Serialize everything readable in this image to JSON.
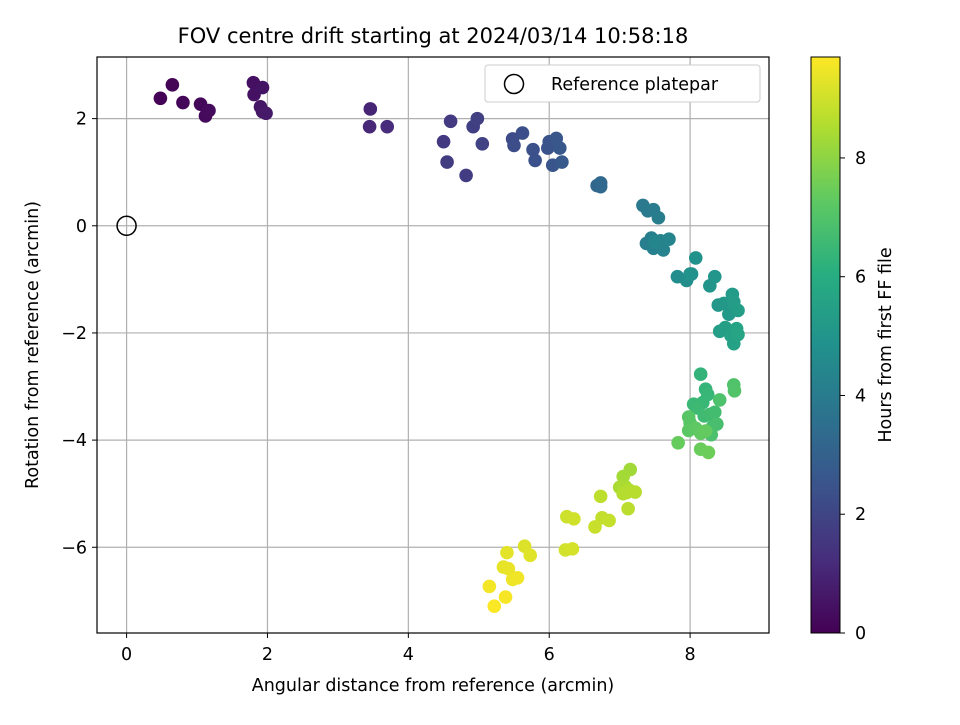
{
  "chart_data": {
    "type": "scatter",
    "title": "FOV centre drift starting at 2024/03/14 10:58:18",
    "xlabel": "Angular distance from reference (arcmin)",
    "ylabel": "Rotation from reference (arcmin)",
    "xlim": [
      -0.42,
      9.12
    ],
    "ylim": [
      -7.6,
      3.15
    ],
    "xticks": [
      0,
      2,
      4,
      6,
      8
    ],
    "yticks": [
      -6,
      -4,
      -2,
      0,
      2
    ],
    "grid": true,
    "legend": {
      "placement": "top-right",
      "entries": [
        "Reference platepar"
      ]
    },
    "reference_point": {
      "x": 0,
      "y": 0
    },
    "colorbar": {
      "label": "Hours from first FF file",
      "range": [
        0,
        9.7
      ],
      "ticks": [
        0,
        2,
        4,
        6,
        8
      ],
      "colormap": "viridis"
    },
    "points": [
      {
        "x": 0.48,
        "y": 2.38,
        "c": 0.05
      },
      {
        "x": 0.65,
        "y": 2.63,
        "c": 0.1
      },
      {
        "x": 0.8,
        "y": 2.3,
        "c": 0.15
      },
      {
        "x": 1.05,
        "y": 2.27,
        "c": 0.2
      },
      {
        "x": 1.12,
        "y": 2.05,
        "c": 0.25
      },
      {
        "x": 1.17,
        "y": 2.15,
        "c": 0.3
      },
      {
        "x": 1.8,
        "y": 2.67,
        "c": 0.4
      },
      {
        "x": 1.81,
        "y": 2.45,
        "c": 0.45
      },
      {
        "x": 1.93,
        "y": 2.58,
        "c": 0.5
      },
      {
        "x": 1.9,
        "y": 2.22,
        "c": 0.55
      },
      {
        "x": 1.93,
        "y": 2.13,
        "c": 0.6
      },
      {
        "x": 1.98,
        "y": 2.1,
        "c": 0.65
      },
      {
        "x": 3.46,
        "y": 2.18,
        "c": 1.0
      },
      {
        "x": 3.45,
        "y": 1.85,
        "c": 1.1
      },
      {
        "x": 3.7,
        "y": 1.85,
        "c": 1.2
      },
      {
        "x": 4.5,
        "y": 1.57,
        "c": 1.6
      },
      {
        "x": 4.6,
        "y": 1.95,
        "c": 1.65
      },
      {
        "x": 4.55,
        "y": 1.19,
        "c": 1.7
      },
      {
        "x": 4.82,
        "y": 0.94,
        "c": 1.75
      },
      {
        "x": 4.92,
        "y": 1.85,
        "c": 1.8
      },
      {
        "x": 4.98,
        "y": 2.0,
        "c": 1.85
      },
      {
        "x": 5.05,
        "y": 1.53,
        "c": 1.9
      },
      {
        "x": 5.48,
        "y": 1.62,
        "c": 2.2
      },
      {
        "x": 5.5,
        "y": 1.5,
        "c": 2.25
      },
      {
        "x": 5.62,
        "y": 1.73,
        "c": 2.3
      },
      {
        "x": 5.77,
        "y": 1.42,
        "c": 2.35
      },
      {
        "x": 5.8,
        "y": 1.22,
        "c": 2.4
      },
      {
        "x": 5.98,
        "y": 1.45,
        "c": 2.45
      },
      {
        "x": 6.0,
        "y": 1.57,
        "c": 2.5
      },
      {
        "x": 6.05,
        "y": 1.13,
        "c": 2.55
      },
      {
        "x": 6.1,
        "y": 1.63,
        "c": 2.6
      },
      {
        "x": 6.15,
        "y": 1.45,
        "c": 2.65
      },
      {
        "x": 6.18,
        "y": 1.19,
        "c": 2.7
      },
      {
        "x": 6.68,
        "y": 0.75,
        "c": 3.2
      },
      {
        "x": 6.73,
        "y": 0.8,
        "c": 3.25
      },
      {
        "x": 6.73,
        "y": 0.73,
        "c": 3.3
      },
      {
        "x": 7.33,
        "y": 0.38,
        "c": 3.9
      },
      {
        "x": 7.4,
        "y": 0.28,
        "c": 3.95
      },
      {
        "x": 7.48,
        "y": 0.3,
        "c": 4.0
      },
      {
        "x": 7.55,
        "y": 0.15,
        "c": 4.05
      },
      {
        "x": 7.38,
        "y": -0.33,
        "c": 4.1
      },
      {
        "x": 7.45,
        "y": -0.23,
        "c": 4.15
      },
      {
        "x": 7.48,
        "y": -0.42,
        "c": 4.2
      },
      {
        "x": 7.58,
        "y": -0.28,
        "c": 4.25
      },
      {
        "x": 7.62,
        "y": -0.45,
        "c": 4.3
      },
      {
        "x": 7.7,
        "y": -0.25,
        "c": 4.35
      },
      {
        "x": 7.5,
        "y": -0.3,
        "c": 4.4
      },
      {
        "x": 7.82,
        "y": -0.95,
        "c": 4.7
      },
      {
        "x": 7.95,
        "y": -1.02,
        "c": 4.75
      },
      {
        "x": 8.02,
        "y": -0.9,
        "c": 4.8
      },
      {
        "x": 8.08,
        "y": -0.6,
        "c": 4.85
      },
      {
        "x": 8.0,
        "y": -0.9,
        "c": 4.9
      },
      {
        "x": 8.28,
        "y": -1.12,
        "c": 5.0
      },
      {
        "x": 8.35,
        "y": -0.95,
        "c": 5.05
      },
      {
        "x": 8.4,
        "y": -1.48,
        "c": 5.1
      },
      {
        "x": 8.48,
        "y": -1.45,
        "c": 5.15
      },
      {
        "x": 8.55,
        "y": -1.65,
        "c": 5.2
      },
      {
        "x": 8.6,
        "y": -1.28,
        "c": 5.25
      },
      {
        "x": 8.62,
        "y": -1.42,
        "c": 5.3
      },
      {
        "x": 8.68,
        "y": -1.58,
        "c": 5.35
      },
      {
        "x": 8.42,
        "y": -1.97,
        "c": 5.4
      },
      {
        "x": 8.5,
        "y": -1.9,
        "c": 5.45
      },
      {
        "x": 8.58,
        "y": -2.05,
        "c": 5.5
      },
      {
        "x": 8.62,
        "y": -2.2,
        "c": 5.55
      },
      {
        "x": 8.66,
        "y": -1.92,
        "c": 5.6
      },
      {
        "x": 8.68,
        "y": -2.03,
        "c": 5.65
      },
      {
        "x": 8.15,
        "y": -2.77,
        "c": 6.3
      },
      {
        "x": 8.22,
        "y": -3.05,
        "c": 6.35
      },
      {
        "x": 8.25,
        "y": -3.15,
        "c": 6.4
      },
      {
        "x": 8.18,
        "y": -3.3,
        "c": 6.45
      },
      {
        "x": 8.05,
        "y": -3.33,
        "c": 6.5
      },
      {
        "x": 8.1,
        "y": -3.4,
        "c": 6.55
      },
      {
        "x": 8.2,
        "y": -3.55,
        "c": 6.6
      },
      {
        "x": 8.28,
        "y": -3.52,
        "c": 6.65
      },
      {
        "x": 8.35,
        "y": -3.48,
        "c": 6.7
      },
      {
        "x": 8.32,
        "y": -3.75,
        "c": 6.75
      },
      {
        "x": 8.38,
        "y": -3.7,
        "c": 6.8
      },
      {
        "x": 8.3,
        "y": -3.9,
        "c": 6.85
      },
      {
        "x": 8.42,
        "y": -3.25,
        "c": 6.9
      },
      {
        "x": 8.62,
        "y": -2.97,
        "c": 6.95
      },
      {
        "x": 8.63,
        "y": -3.08,
        "c": 7.0
      },
      {
        "x": 7.98,
        "y": -3.57,
        "c": 7.1
      },
      {
        "x": 8.0,
        "y": -3.68,
        "c": 7.15
      },
      {
        "x": 7.98,
        "y": -3.82,
        "c": 7.2
      },
      {
        "x": 8.08,
        "y": -3.78,
        "c": 7.25
      },
      {
        "x": 8.15,
        "y": -3.87,
        "c": 7.3
      },
      {
        "x": 8.22,
        "y": -3.83,
        "c": 7.35
      },
      {
        "x": 7.83,
        "y": -4.05,
        "c": 7.4
      },
      {
        "x": 8.15,
        "y": -4.17,
        "c": 7.45
      },
      {
        "x": 8.26,
        "y": -4.23,
        "c": 7.5
      },
      {
        "x": 7.15,
        "y": -4.55,
        "c": 8.3
      },
      {
        "x": 7.05,
        "y": -4.68,
        "c": 8.35
      },
      {
        "x": 7.08,
        "y": -4.87,
        "c": 8.4
      },
      {
        "x": 7.0,
        "y": -4.88,
        "c": 8.45
      },
      {
        "x": 7.1,
        "y": -4.98,
        "c": 8.5
      },
      {
        "x": 7.13,
        "y": -4.93,
        "c": 8.55
      },
      {
        "x": 7.05,
        "y": -5.0,
        "c": 8.6
      },
      {
        "x": 7.22,
        "y": -4.97,
        "c": 8.65
      },
      {
        "x": 7.12,
        "y": -5.28,
        "c": 8.7
      },
      {
        "x": 6.73,
        "y": -5.05,
        "c": 8.75
      },
      {
        "x": 6.75,
        "y": -5.45,
        "c": 8.8
      },
      {
        "x": 6.85,
        "y": -5.5,
        "c": 8.85
      },
      {
        "x": 6.65,
        "y": -5.62,
        "c": 8.9
      },
      {
        "x": 6.25,
        "y": -5.43,
        "c": 8.95
      },
      {
        "x": 6.35,
        "y": -5.47,
        "c": 9.0
      },
      {
        "x": 6.23,
        "y": -6.05,
        "c": 9.05
      },
      {
        "x": 6.33,
        "y": -6.03,
        "c": 9.1
      },
      {
        "x": 5.65,
        "y": -5.98,
        "c": 9.2
      },
      {
        "x": 5.73,
        "y": -6.15,
        "c": 9.25
      },
      {
        "x": 5.4,
        "y": -6.1,
        "c": 9.3
      },
      {
        "x": 5.35,
        "y": -6.37,
        "c": 9.35
      },
      {
        "x": 5.42,
        "y": -6.4,
        "c": 9.4
      },
      {
        "x": 5.48,
        "y": -6.6,
        "c": 9.45
      },
      {
        "x": 5.55,
        "y": -6.57,
        "c": 9.5
      },
      {
        "x": 5.15,
        "y": -6.73,
        "c": 9.55
      },
      {
        "x": 5.38,
        "y": -6.93,
        "c": 9.6
      },
      {
        "x": 5.22,
        "y": -7.1,
        "c": 9.65
      }
    ]
  }
}
